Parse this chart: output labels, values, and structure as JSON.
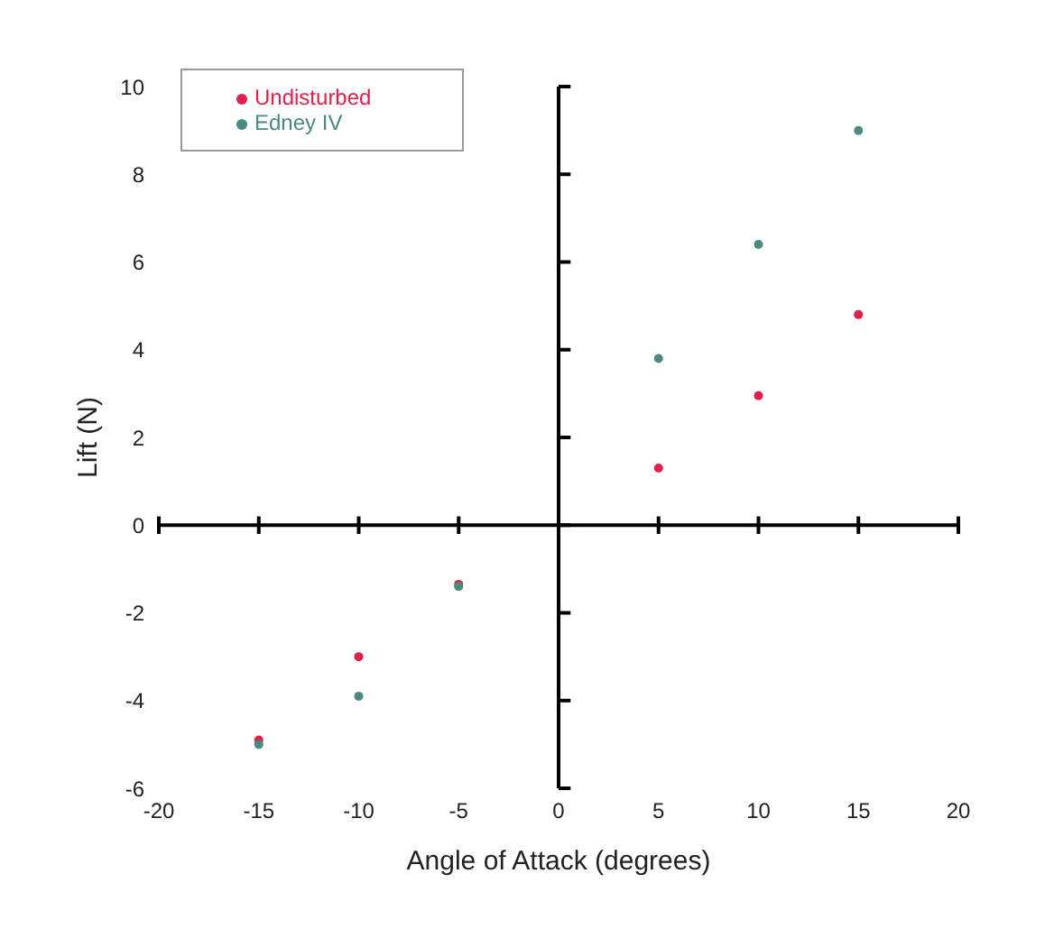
{
  "chart_data": {
    "type": "scatter",
    "xlabel": "Angle of Attack (degrees)",
    "ylabel": "Lift (N)",
    "x": [
      -15,
      -10,
      -5,
      5,
      10,
      15
    ],
    "series": [
      {
        "name": "Undisturbed",
        "color": "#e0204a",
        "values": [
          -4.9,
          -3.0,
          -1.35,
          1.3,
          2.95,
          4.8
        ]
      },
      {
        "name": "Edney IV",
        "color": "#4a8a80",
        "values": [
          -5.0,
          -3.9,
          -1.4,
          3.8,
          6.4,
          9.0
        ]
      }
    ],
    "xlim": [
      -20,
      20
    ],
    "xticks": [
      -20,
      -15,
      -10,
      -5,
      0,
      5,
      10,
      15,
      20
    ],
    "ylim": [
      -6,
      10
    ],
    "yticks": [
      -6,
      -4,
      -2,
      0,
      2,
      4,
      6,
      8,
      10
    ],
    "legend": "top left",
    "marker": "circle"
  }
}
